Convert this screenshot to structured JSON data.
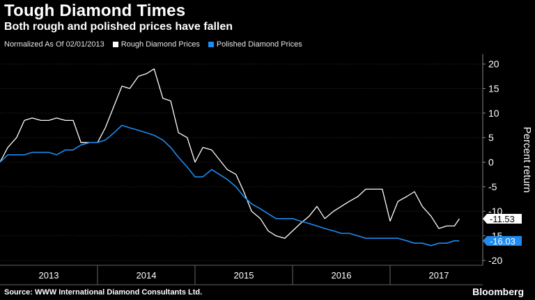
{
  "title": "Tough Diamond Times",
  "subtitle": "Both rough and polished prices have fallen",
  "legend": {
    "normalized_label": "Normalized As Of 02/01/2013",
    "items": [
      {
        "label": "Rough Diamond Prices",
        "color": "#ffffff"
      },
      {
        "label": "Polished Diamond Prices",
        "color": "#1f8cf2"
      }
    ]
  },
  "source": "Source: WWW International Diamond Consultants Ltd.",
  "brand": "Bloomberg",
  "chart_data": {
    "type": "line",
    "ylabel": "Percent return",
    "ylim": [
      -21,
      22
    ],
    "yticks": [
      20,
      15,
      10,
      5,
      0,
      -5,
      -10,
      -15,
      -20
    ],
    "xlim": [
      2013.0,
      2017.95
    ],
    "year_labels": [
      {
        "label": "2013",
        "center": 2013.5
      },
      {
        "label": "2014",
        "center": 2014.5
      },
      {
        "label": "2015",
        "center": 2015.5
      },
      {
        "label": "2016",
        "center": 2016.5
      },
      {
        "label": "2017",
        "center": 2017.5
      }
    ],
    "year_boundaries": [
      2014.0,
      2015.0,
      2016.0,
      2017.0
    ],
    "series": [
      {
        "name": "Rough Diamond Prices",
        "color": "#ffffff",
        "points": [
          [
            2013.0,
            0
          ],
          [
            2013.08,
            3
          ],
          [
            2013.17,
            5
          ],
          [
            2013.25,
            8.5
          ],
          [
            2013.33,
            9
          ],
          [
            2013.42,
            8.5
          ],
          [
            2013.5,
            8.5
          ],
          [
            2013.58,
            9
          ],
          [
            2013.67,
            8.5
          ],
          [
            2013.75,
            8.5
          ],
          [
            2013.83,
            4
          ],
          [
            2013.92,
            4
          ],
          [
            2014.0,
            4
          ],
          [
            2014.08,
            7
          ],
          [
            2014.17,
            11.5
          ],
          [
            2014.25,
            15.5
          ],
          [
            2014.33,
            15
          ],
          [
            2014.42,
            17.5
          ],
          [
            2014.5,
            18
          ],
          [
            2014.58,
            19
          ],
          [
            2014.67,
            13
          ],
          [
            2014.75,
            12.5
          ],
          [
            2014.83,
            6
          ],
          [
            2014.92,
            5
          ],
          [
            2015.0,
            0
          ],
          [
            2015.08,
            3
          ],
          [
            2015.17,
            2.5
          ],
          [
            2015.25,
            0.5
          ],
          [
            2015.33,
            -1.5
          ],
          [
            2015.42,
            -2.5
          ],
          [
            2015.5,
            -6
          ],
          [
            2015.58,
            -10
          ],
          [
            2015.67,
            -11.5
          ],
          [
            2015.75,
            -14
          ],
          [
            2015.83,
            -15
          ],
          [
            2015.92,
            -15.5
          ],
          [
            2016.0,
            -14
          ],
          [
            2016.08,
            -12.5
          ],
          [
            2016.17,
            -11
          ],
          [
            2016.25,
            -9
          ],
          [
            2016.33,
            -11.5
          ],
          [
            2016.42,
            -10
          ],
          [
            2016.5,
            -9
          ],
          [
            2016.58,
            -8
          ],
          [
            2016.67,
            -7
          ],
          [
            2016.75,
            -5.5
          ],
          [
            2016.83,
            -5.5
          ],
          [
            2016.92,
            -5.5
          ],
          [
            2017.0,
            -12
          ],
          [
            2017.08,
            -8
          ],
          [
            2017.17,
            -7
          ],
          [
            2017.25,
            -6
          ],
          [
            2017.33,
            -9
          ],
          [
            2017.42,
            -11
          ],
          [
            2017.5,
            -13.5
          ],
          [
            2017.58,
            -13
          ],
          [
            2017.66,
            -13
          ],
          [
            2017.71,
            -11.53
          ]
        ]
      },
      {
        "name": "Polished Diamond Prices",
        "color": "#1f8cf2",
        "points": [
          [
            2013.0,
            0
          ],
          [
            2013.08,
            1.5
          ],
          [
            2013.17,
            1.5
          ],
          [
            2013.25,
            1.5
          ],
          [
            2013.33,
            2
          ],
          [
            2013.42,
            2
          ],
          [
            2013.5,
            2
          ],
          [
            2013.58,
            1.5
          ],
          [
            2013.67,
            2.5
          ],
          [
            2013.75,
            2.5
          ],
          [
            2013.83,
            3.5
          ],
          [
            2013.92,
            4
          ],
          [
            2014.0,
            4
          ],
          [
            2014.08,
            4.5
          ],
          [
            2014.17,
            6
          ],
          [
            2014.25,
            7.5
          ],
          [
            2014.33,
            7
          ],
          [
            2014.42,
            6.5
          ],
          [
            2014.5,
            6
          ],
          [
            2014.58,
            5.5
          ],
          [
            2014.67,
            4.5
          ],
          [
            2014.75,
            3
          ],
          [
            2014.83,
            1
          ],
          [
            2014.92,
            -1
          ],
          [
            2015.0,
            -3
          ],
          [
            2015.08,
            -3
          ],
          [
            2015.17,
            -1.5
          ],
          [
            2015.25,
            -2.5
          ],
          [
            2015.33,
            -3.5
          ],
          [
            2015.42,
            -5
          ],
          [
            2015.5,
            -7
          ],
          [
            2015.58,
            -8.5
          ],
          [
            2015.67,
            -9.5
          ],
          [
            2015.75,
            -10.5
          ],
          [
            2015.83,
            -11.5
          ],
          [
            2015.92,
            -11.5
          ],
          [
            2016.0,
            -11.5
          ],
          [
            2016.08,
            -12
          ],
          [
            2016.17,
            -12.5
          ],
          [
            2016.25,
            -13
          ],
          [
            2016.33,
            -13.5
          ],
          [
            2016.42,
            -14
          ],
          [
            2016.5,
            -14.5
          ],
          [
            2016.58,
            -14.5
          ],
          [
            2016.67,
            -15
          ],
          [
            2016.75,
            -15.5
          ],
          [
            2016.83,
            -15.5
          ],
          [
            2016.92,
            -15.5
          ],
          [
            2017.0,
            -15.5
          ],
          [
            2017.08,
            -15.5
          ],
          [
            2017.17,
            -16
          ],
          [
            2017.25,
            -16.5
          ],
          [
            2017.33,
            -16.5
          ],
          [
            2017.42,
            -17
          ],
          [
            2017.5,
            -16.5
          ],
          [
            2017.58,
            -16.5
          ],
          [
            2017.66,
            -16
          ],
          [
            2017.71,
            -16.03
          ]
        ]
      }
    ],
    "end_labels": [
      {
        "label": "-11.53",
        "value": -11.53,
        "color": "#ffffff",
        "text_color": "#000000"
      },
      {
        "label": "-16.03",
        "value": -16.03,
        "color": "#1f8cf2",
        "text_color": "#ffffff"
      }
    ]
  }
}
